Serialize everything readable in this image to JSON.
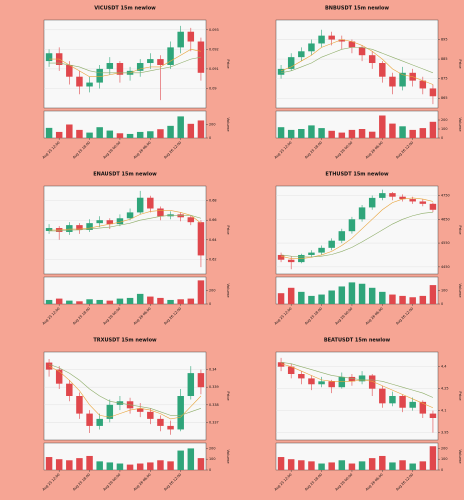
{
  "colors": {
    "up": "#2fa57a",
    "down": "#e0474c",
    "ma_fast": "#e8a33a",
    "ma_slow": "#8fae6a"
  },
  "chart_data": [
    {
      "type": "candlestick",
      "title": "VICUSDT 15m newlow",
      "ylabel": "Price",
      "volume_label": "Volume",
      "candles": [
        [
          0.0914,
          0.092,
          0.0911,
          0.0918,
          150
        ],
        [
          0.0918,
          0.0921,
          0.0909,
          0.0912,
          90
        ],
        [
          0.0912,
          0.0914,
          0.0902,
          0.0906,
          200
        ],
        [
          0.0906,
          0.0909,
          0.0897,
          0.0901,
          120
        ],
        [
          0.0901,
          0.0906,
          0.0898,
          0.0903,
          80
        ],
        [
          0.0903,
          0.0912,
          0.09,
          0.091,
          160
        ],
        [
          0.091,
          0.0916,
          0.0907,
          0.0913,
          110
        ],
        [
          0.0913,
          0.0914,
          0.0903,
          0.0907,
          70
        ],
        [
          0.0907,
          0.0911,
          0.0904,
          0.0909,
          60
        ],
        [
          0.0909,
          0.0915,
          0.0906,
          0.0913,
          90
        ],
        [
          0.0913,
          0.0918,
          0.091,
          0.0915,
          100
        ],
        [
          0.0915,
          0.0917,
          0.0894,
          0.0912,
          130
        ],
        [
          0.0912,
          0.0924,
          0.091,
          0.0921,
          180
        ],
        [
          0.0921,
          0.0932,
          0.0918,
          0.0929,
          320
        ],
        [
          0.0929,
          0.0931,
          0.0919,
          0.0924,
          210
        ],
        [
          0.0924,
          0.0926,
          0.0904,
          0.0908,
          260
        ]
      ],
      "ma_fast": [
        0.0915,
        0.0915,
        0.0912,
        0.0909,
        0.0906,
        0.0906,
        0.0907,
        0.0908,
        0.0908,
        0.091,
        0.0911,
        0.0911,
        0.0914,
        0.0917,
        0.092,
        0.0919
      ],
      "ma_slow": [
        0.0913,
        0.0913,
        0.0912,
        0.0911,
        0.0909,
        0.0908,
        0.0908,
        0.0908,
        0.0908,
        0.0908,
        0.0909,
        0.091,
        0.0911,
        0.0913,
        0.0915,
        0.0916
      ],
      "ylim": [
        0.089,
        0.0935
      ],
      "yticks": [
        0.09,
        0.091,
        0.092,
        0.093
      ],
      "volume_ylim": [
        0,
        400
      ],
      "volume_yticks": [
        0,
        200
      ],
      "xticks": [
        {
          "value": 1,
          "label": "Aug 25 12:00"
        },
        {
          "value": 4,
          "label": "Aug 25 18:00"
        },
        {
          "value": 7,
          "label": "Aug 26 00:00"
        },
        {
          "value": 10,
          "label": "Aug 26 06:00"
        },
        {
          "value": 13,
          "label": "Aug 26 12:00"
        }
      ]
    },
    {
      "type": "candlestick",
      "title": "BNBUSDT 15m newlow",
      "ylabel": "Price",
      "volume_label": "Volume",
      "candles": [
        [
          877,
          882,
          875,
          880,
          120
        ],
        [
          880,
          888,
          879,
          886,
          90
        ],
        [
          886,
          891,
          884,
          889,
          100
        ],
        [
          889,
          895,
          887,
          893,
          140
        ],
        [
          893,
          900,
          891,
          897,
          110
        ],
        [
          897,
          899,
          892,
          895,
          80
        ],
        [
          895,
          897,
          890,
          894,
          60
        ],
        [
          894,
          895,
          888,
          891,
          90
        ],
        [
          891,
          892,
          884,
          887,
          100
        ],
        [
          887,
          889,
          880,
          883,
          70
        ],
        [
          883,
          884,
          873,
          876,
          250
        ],
        [
          876,
          878,
          867,
          871,
          160
        ],
        [
          871,
          881,
          869,
          878,
          130
        ],
        [
          878,
          880,
          871,
          874,
          90
        ],
        [
          874,
          876,
          867,
          870,
          110
        ],
        [
          870,
          872,
          862,
          866,
          180
        ]
      ],
      "ma_fast": [
        879,
        881,
        884,
        887,
        891,
        893,
        895,
        894,
        892,
        889,
        885,
        880,
        877,
        876,
        874,
        872
      ],
      "ma_slow": [
        878,
        879,
        881,
        883,
        886,
        888,
        890,
        891,
        891,
        890,
        888,
        886,
        884,
        882,
        880,
        878
      ],
      "ylim": [
        860,
        905
      ],
      "yticks": [
        865,
        875,
        885,
        895
      ],
      "volume_ylim": [
        0,
        300
      ],
      "volume_yticks": [
        0,
        100,
        200
      ],
      "xticks": [
        {
          "value": 1,
          "label": "Aug 25 12:00"
        },
        {
          "value": 4,
          "label": "Aug 25 18:00"
        },
        {
          "value": 7,
          "label": "Aug 26 00:00"
        },
        {
          "value": 10,
          "label": "Aug 26 06:00"
        },
        {
          "value": 13,
          "label": "Aug 26 12:00"
        }
      ]
    },
    {
      "type": "candlestick",
      "title": "ENAUSDT 15m newlow",
      "ylabel": "Price",
      "volume_label": "Volume",
      "candles": [
        [
          0.649,
          0.656,
          0.646,
          0.652,
          60
        ],
        [
          0.652,
          0.654,
          0.64,
          0.648,
          80
        ],
        [
          0.648,
          0.658,
          0.645,
          0.655,
          50
        ],
        [
          0.655,
          0.657,
          0.646,
          0.65,
          40
        ],
        [
          0.65,
          0.661,
          0.648,
          0.657,
          70
        ],
        [
          0.657,
          0.664,
          0.653,
          0.66,
          60
        ],
        [
          0.66,
          0.662,
          0.651,
          0.656,
          50
        ],
        [
          0.656,
          0.666,
          0.654,
          0.662,
          80
        ],
        [
          0.662,
          0.672,
          0.66,
          0.668,
          90
        ],
        [
          0.668,
          0.69,
          0.666,
          0.683,
          150
        ],
        [
          0.683,
          0.685,
          0.668,
          0.672,
          110
        ],
        [
          0.672,
          0.674,
          0.66,
          0.664,
          90
        ],
        [
          0.664,
          0.669,
          0.661,
          0.666,
          60
        ],
        [
          0.666,
          0.668,
          0.659,
          0.663,
          70
        ],
        [
          0.663,
          0.665,
          0.655,
          0.658,
          80
        ],
        [
          0.658,
          0.66,
          0.612,
          0.624,
          350
        ]
      ],
      "ma_fast": [
        0.65,
        0.65,
        0.651,
        0.651,
        0.652,
        0.654,
        0.656,
        0.658,
        0.661,
        0.666,
        0.669,
        0.67,
        0.67,
        0.668,
        0.665,
        0.657
      ],
      "ma_slow": [
        0.649,
        0.649,
        0.65,
        0.65,
        0.651,
        0.652,
        0.653,
        0.655,
        0.657,
        0.66,
        0.662,
        0.664,
        0.665,
        0.665,
        0.665,
        0.662
      ],
      "ylim": [
        0.605,
        0.695
      ],
      "yticks": [
        0.62,
        0.64,
        0.66,
        0.68
      ],
      "volume_ylim": [
        0,
        400
      ],
      "volume_yticks": [
        0,
        200
      ],
      "xticks": [
        {
          "value": 1,
          "label": "Aug 25 12:00"
        },
        {
          "value": 4,
          "label": "Aug 25 18:00"
        },
        {
          "value": 7,
          "label": "Aug 26 00:00"
        },
        {
          "value": 10,
          "label": "Aug 26 06:00"
        },
        {
          "value": 13,
          "label": "Aug 26 12:00"
        }
      ]
    },
    {
      "type": "candlestick",
      "title": "ETHUSDT 15m newlow",
      "ylabel": "Price",
      "volume_label": "Volume",
      "candles": [
        [
          4500,
          4510,
          4470,
          4480,
          80
        ],
        [
          4480,
          4495,
          4440,
          4470,
          120
        ],
        [
          4470,
          4505,
          4465,
          4500,
          90
        ],
        [
          4500,
          4520,
          4490,
          4510,
          60
        ],
        [
          4510,
          4540,
          4500,
          4530,
          70
        ],
        [
          4530,
          4570,
          4520,
          4560,
          100
        ],
        [
          4560,
          4610,
          4550,
          4600,
          130
        ],
        [
          4600,
          4660,
          4590,
          4650,
          160
        ],
        [
          4650,
          4710,
          4640,
          4700,
          150
        ],
        [
          4700,
          4750,
          4690,
          4740,
          120
        ],
        [
          4740,
          4775,
          4730,
          4760,
          90
        ],
        [
          4760,
          4765,
          4730,
          4745,
          70
        ],
        [
          4745,
          4755,
          4725,
          4735,
          60
        ],
        [
          4735,
          4745,
          4715,
          4725,
          50
        ],
        [
          4725,
          4735,
          4705,
          4715,
          60
        ],
        [
          4715,
          4720,
          4680,
          4690,
          140
        ]
      ],
      "ma_fast": [
        4495,
        4485,
        4485,
        4490,
        4500,
        4515,
        4540,
        4570,
        4610,
        4650,
        4690,
        4720,
        4735,
        4740,
        4735,
        4725
      ],
      "ma_slow": [
        4500,
        4495,
        4492,
        4492,
        4495,
        4502,
        4515,
        4532,
        4555,
        4580,
        4605,
        4630,
        4650,
        4665,
        4675,
        4680
      ],
      "ylim": [
        4420,
        4790
      ],
      "yticks": [
        4450,
        4550,
        4650,
        4750
      ],
      "volume_ylim": [
        0,
        200
      ],
      "volume_yticks": [
        0,
        100
      ],
      "xticks": [
        {
          "value": 1,
          "label": "Aug 25 12:00"
        },
        {
          "value": 4,
          "label": "Aug 25 18:00"
        },
        {
          "value": 7,
          "label": "Aug 26 00:00"
        },
        {
          "value": 10,
          "label": "Aug 26 06:00"
        },
        {
          "value": 13,
          "label": "Aug 26 12:00"
        }
      ]
    },
    {
      "type": "candlestick",
      "title": "TRXUSDT 15m newlow",
      "ylabel": "Price",
      "volume_label": "Volume",
      "candles": [
        [
          0.3404,
          0.3406,
          0.3396,
          0.34,
          120
        ],
        [
          0.34,
          0.3402,
          0.3389,
          0.3392,
          100
        ],
        [
          0.3392,
          0.3394,
          0.3382,
          0.3385,
          90
        ],
        [
          0.3385,
          0.3387,
          0.3372,
          0.3375,
          110
        ],
        [
          0.3375,
          0.3377,
          0.3364,
          0.3368,
          130
        ],
        [
          0.3368,
          0.3375,
          0.3366,
          0.3372,
          80
        ],
        [
          0.3372,
          0.3383,
          0.337,
          0.338,
          70
        ],
        [
          0.338,
          0.3385,
          0.3377,
          0.3382,
          60
        ],
        [
          0.3382,
          0.3384,
          0.3375,
          0.3378,
          50
        ],
        [
          0.3378,
          0.3381,
          0.3373,
          0.3376,
          60
        ],
        [
          0.3376,
          0.3378,
          0.3369,
          0.3372,
          70
        ],
        [
          0.3372,
          0.3374,
          0.3365,
          0.3368,
          90
        ],
        [
          0.3368,
          0.3371,
          0.3363,
          0.3366,
          80
        ],
        [
          0.3366,
          0.3389,
          0.3365,
          0.3385,
          180
        ],
        [
          0.3385,
          0.3402,
          0.3383,
          0.3398,
          200
        ],
        [
          0.3398,
          0.34,
          0.3386,
          0.339,
          110
        ]
      ],
      "ma_fast": [
        0.3402,
        0.3399,
        0.3394,
        0.3388,
        0.338,
        0.3374,
        0.3373,
        0.3375,
        0.3377,
        0.3378,
        0.3377,
        0.3375,
        0.3372,
        0.3373,
        0.3379,
        0.3385
      ],
      "ma_slow": [
        0.3403,
        0.3401,
        0.3398,
        0.3394,
        0.3389,
        0.3385,
        0.3382,
        0.3381,
        0.338,
        0.3379,
        0.3378,
        0.3376,
        0.3374,
        0.3374,
        0.3376,
        0.3378
      ],
      "ylim": [
        0.336,
        0.341
      ],
      "yticks": [
        0.337,
        0.338,
        0.339,
        0.34
      ],
      "volume_ylim": [
        0,
        250
      ],
      "volume_yticks": [
        0,
        100,
        200
      ],
      "xticks": [
        {
          "value": 1,
          "label": "Aug 25 12:00"
        },
        {
          "value": 4,
          "label": "Aug 25 18:00"
        },
        {
          "value": 7,
          "label": "Aug 26 00:00"
        },
        {
          "value": 10,
          "label": "Aug 26 06:00"
        },
        {
          "value": 13,
          "label": "Aug 26 12:00"
        }
      ]
    },
    {
      "type": "candlestick",
      "title": "BEATUSDT 15m newlow",
      "ylabel": "Price",
      "volume_label": "Volume",
      "candles": [
        [
          4.43,
          4.46,
          4.37,
          4.4,
          120
        ],
        [
          4.4,
          4.42,
          4.32,
          4.35,
          100
        ],
        [
          4.35,
          4.37,
          4.28,
          4.32,
          90
        ],
        [
          4.32,
          4.34,
          4.24,
          4.28,
          80
        ],
        [
          4.28,
          4.33,
          4.26,
          4.3,
          60
        ],
        [
          4.3,
          4.31,
          4.22,
          4.26,
          70
        ],
        [
          4.26,
          4.36,
          4.25,
          4.33,
          90
        ],
        [
          4.33,
          4.35,
          4.27,
          4.3,
          60
        ],
        [
          4.3,
          4.37,
          4.28,
          4.34,
          80
        ],
        [
          4.34,
          4.35,
          4.2,
          4.25,
          110
        ],
        [
          4.25,
          4.27,
          4.12,
          4.15,
          130
        ],
        [
          4.15,
          4.23,
          4.13,
          4.2,
          70
        ],
        [
          4.2,
          4.21,
          4.09,
          4.12,
          90
        ],
        [
          4.12,
          4.19,
          4.1,
          4.16,
          60
        ],
        [
          4.16,
          4.17,
          4.05,
          4.08,
          80
        ],
        [
          4.08,
          4.1,
          3.95,
          4.05,
          220
        ]
      ],
      "ma_fast": [
        4.42,
        4.4,
        4.37,
        4.34,
        4.31,
        4.3,
        4.3,
        4.3,
        4.31,
        4.3,
        4.27,
        4.24,
        4.21,
        4.18,
        4.15,
        4.12
      ],
      "ma_slow": [
        4.43,
        4.42,
        4.4,
        4.38,
        4.36,
        4.34,
        4.33,
        4.32,
        4.31,
        4.31,
        4.3,
        4.28,
        4.26,
        4.24,
        4.22,
        4.19
      ],
      "ylim": [
        3.9,
        4.5
      ],
      "yticks": [
        3.95,
        4.1,
        4.25,
        4.4
      ],
      "volume_ylim": [
        0,
        250
      ],
      "volume_yticks": [
        0,
        100,
        200
      ],
      "xticks": [
        {
          "value": 1,
          "label": "Aug 25 12:00"
        },
        {
          "value": 4,
          "label": "Aug 25 18:00"
        },
        {
          "value": 7,
          "label": "Aug 26 00:00"
        },
        {
          "value": 10,
          "label": "Aug 26 06:00"
        },
        {
          "value": 13,
          "label": "Aug 26 12:00"
        }
      ]
    }
  ]
}
